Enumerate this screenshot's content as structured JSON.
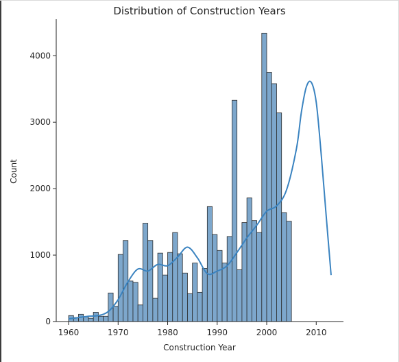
{
  "chart_data": {
    "type": "bar",
    "title": "Distribution of Construction Years",
    "xlabel": "Construction Year",
    "ylabel": "Count",
    "xlim": [
      1957.5,
      2015.5
    ],
    "ylim": [
      0,
      4550
    ],
    "xticks": [
      1960,
      1970,
      1980,
      1990,
      2000,
      2010
    ],
    "yticks": [
      0,
      1000,
      2000,
      3000,
      4000
    ],
    "bin_start": 1960,
    "bin_width": 1.0,
    "values": [
      90,
      60,
      110,
      70,
      50,
      140,
      80,
      80,
      430,
      230,
      1010,
      1220,
      610,
      590,
      250,
      1480,
      1220,
      350,
      1030,
      700,
      1040,
      1340,
      1020,
      730,
      420,
      880,
      440,
      800,
      1730,
      1310,
      1070,
      880,
      1280,
      3330,
      780,
      1490,
      1860,
      1520,
      1340,
      4340,
      3750,
      3580,
      3140,
      1640,
      1510
    ],
    "kde": {
      "x": [
        1960,
        1962,
        1964,
        1966,
        1968,
        1970,
        1972,
        1974,
        1976,
        1978,
        1980,
        1982,
        1984,
        1986,
        1988,
        1990,
        1992,
        1994,
        1996,
        1998,
        2000,
        2002,
        2004,
        2006,
        2007,
        2008,
        2009,
        2010,
        2011,
        2012,
        2013
      ],
      "y": [
        40,
        60,
        80,
        90,
        150,
        330,
        600,
        790,
        760,
        860,
        840,
        970,
        1120,
        960,
        720,
        760,
        840,
        1040,
        1260,
        1450,
        1660,
        1740,
        1980,
        2600,
        3150,
        3530,
        3600,
        3300,
        2520,
        1600,
        700
      ]
    },
    "grid": false,
    "legend": "none"
  }
}
